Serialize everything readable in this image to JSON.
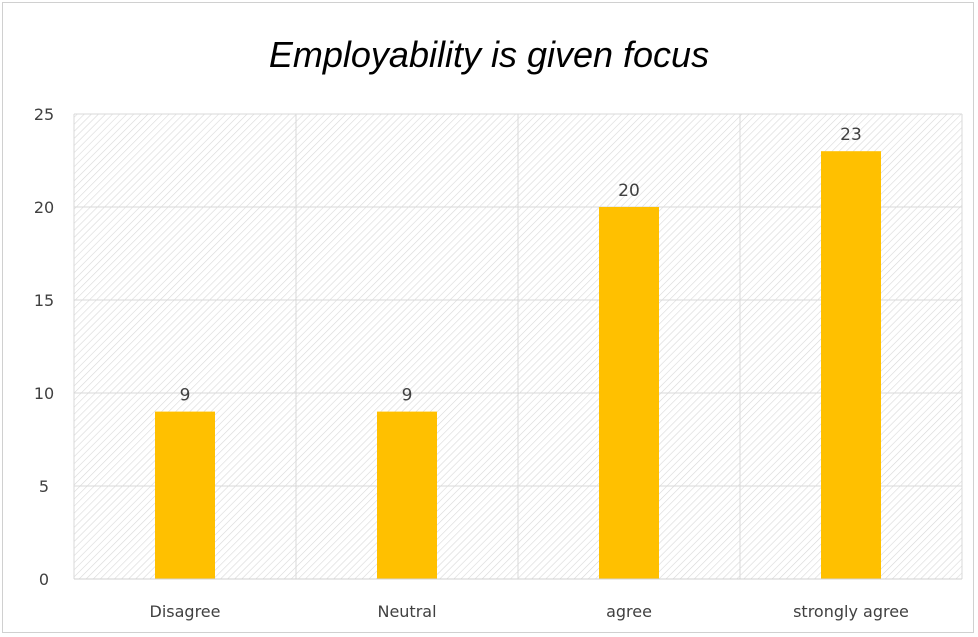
{
  "chart_data": {
    "type": "bar",
    "title": "Employability is given focus",
    "categories": [
      "Disagree",
      "Neutral",
      "agree",
      "strongly agree"
    ],
    "values": [
      9,
      9,
      20,
      23
    ],
    "data_labels": [
      "9",
      "9",
      "20",
      "23"
    ],
    "ylim": [
      0,
      25
    ],
    "yticks": [
      "0",
      "5",
      "10",
      "15",
      "20",
      "25"
    ],
    "grid": true,
    "colors": {
      "bar": "#FFC000",
      "grid": "#d9d9d9",
      "hatch": "#d8d8d8"
    }
  }
}
